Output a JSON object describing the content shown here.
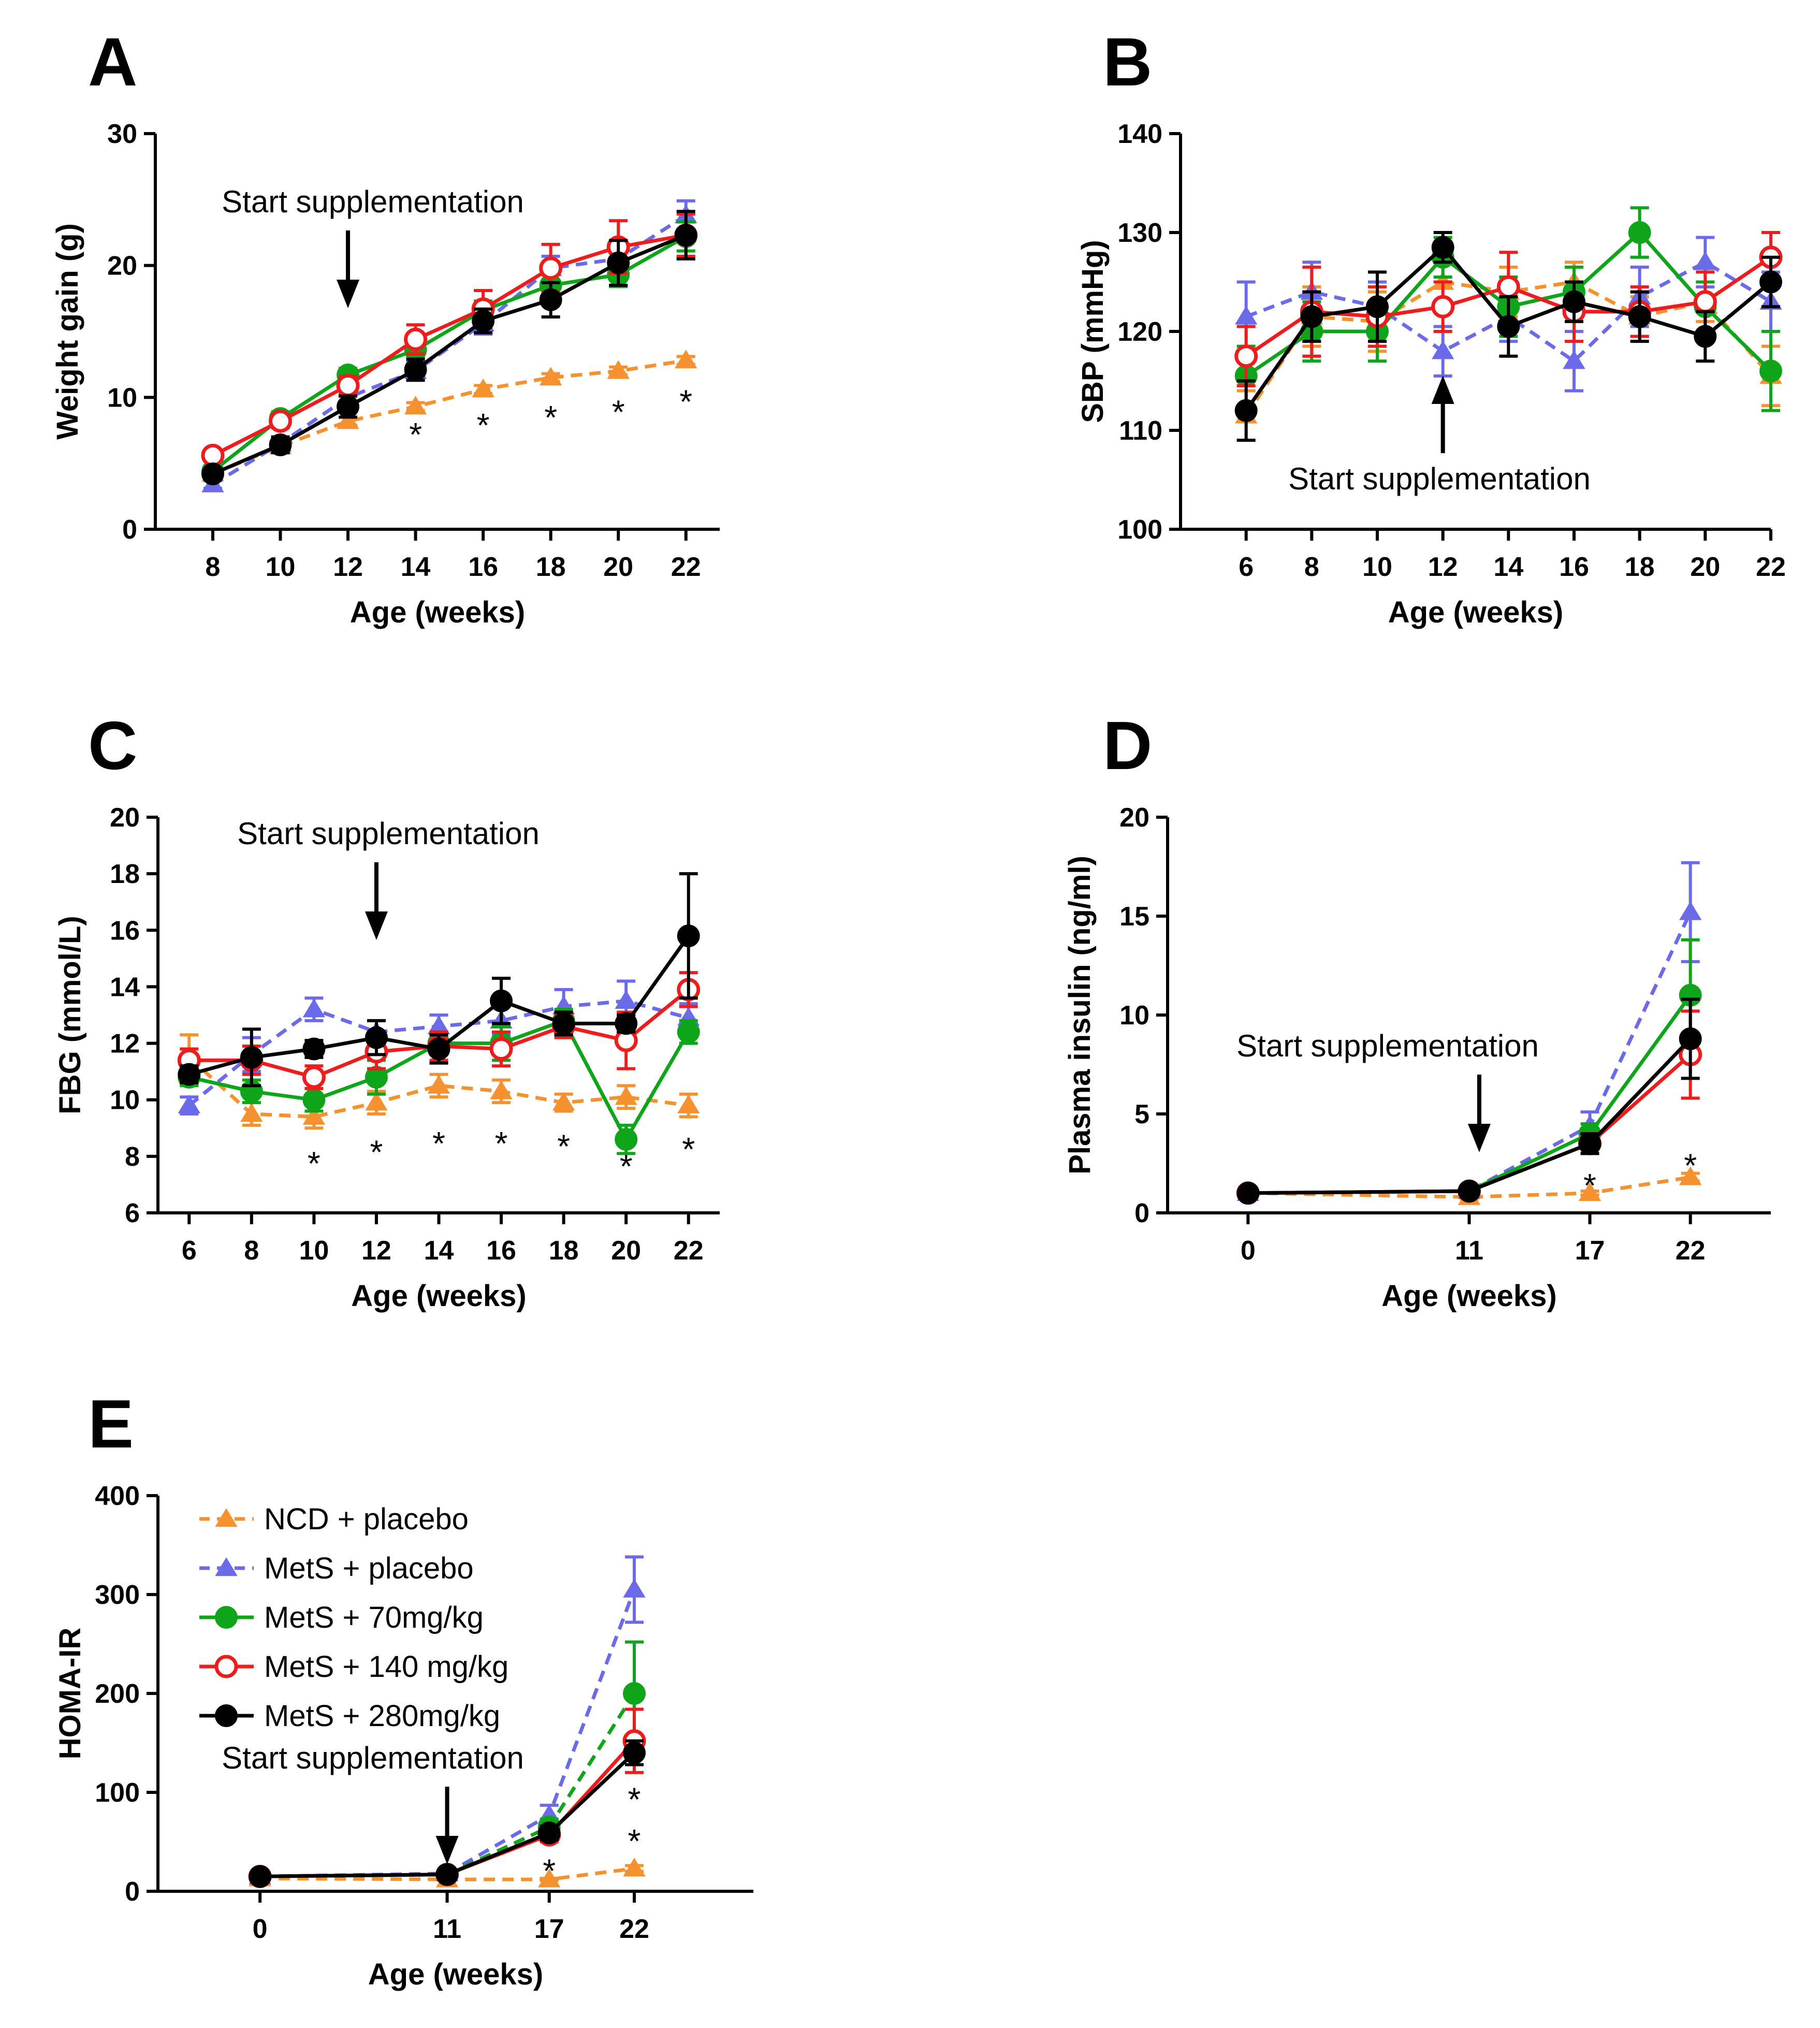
{
  "series_meta": [
    {
      "key": "ncd",
      "name": "NCD + placebo",
      "color": "#f5922f",
      "marker": "triangle-filled",
      "dash": true
    },
    {
      "key": "mets",
      "name": "MetS + placebo",
      "color": "#6b6bea",
      "marker": "triangle-filled",
      "dash": true
    },
    {
      "key": "m70",
      "name": "MetS + 70mg/kg",
      "color": "#0ea51a",
      "marker": "circle-filled",
      "dash": false
    },
    {
      "key": "m140",
      "name": "MetS + 140 mg/kg",
      "color": "#ee1c1c",
      "marker": "circle-open",
      "dash": false
    },
    {
      "key": "m280",
      "name": "MetS + 280mg/kg",
      "color": "#000000",
      "marker": "circle-filled",
      "dash": false
    }
  ],
  "chart_data": [
    {
      "id": "A",
      "letter": "A",
      "type": "line",
      "xlabel": "Age (weeks)",
      "ylabel": "Weight gain (g)",
      "x": [
        8,
        10,
        12,
        14,
        16,
        18,
        20,
        22
      ],
      "xlim": [
        6.3,
        23
      ],
      "ylim": [
        0,
        30
      ],
      "yticks": [
        0,
        10,
        20,
        30
      ],
      "annotation": "Start supplementation",
      "arrow_x": 12,
      "arrow_dir": "down",
      "significance": [
        {
          "x": 14,
          "y": 7.5,
          "text": "*"
        },
        {
          "x": 16,
          "y": 8.2,
          "text": "*"
        },
        {
          "x": 18,
          "y": 8.8,
          "text": "*"
        },
        {
          "x": 20,
          "y": 9.2,
          "text": "*"
        },
        {
          "x": 22,
          "y": 10.0,
          "text": "*"
        }
      ],
      "series": [
        {
          "key": "ncd",
          "values": [
            4.2,
            6.3,
            8.2,
            9.3,
            10.6,
            11.5,
            12.0,
            12.8
          ],
          "err": [
            0.3,
            0.3,
            0.3,
            0.3,
            0.3,
            0.3,
            0.3,
            0.3
          ]
        },
        {
          "key": "mets",
          "values": [
            3.4,
            6.5,
            10.0,
            12.0,
            15.6,
            19.8,
            20.5,
            23.8
          ],
          "err": [
            0.3,
            0.5,
            0.6,
            0.7,
            0.8,
            0.9,
            0.8,
            1.1
          ]
        },
        {
          "key": "m70",
          "values": [
            4.4,
            8.4,
            11.7,
            13.6,
            16.6,
            18.5,
            19.3,
            22.2
          ],
          "err": [
            0.3,
            0.5,
            0.5,
            0.6,
            0.7,
            0.8,
            0.9,
            1.1
          ]
        },
        {
          "key": "m140",
          "values": [
            5.6,
            8.2,
            10.9,
            14.4,
            16.7,
            19.8,
            21.4,
            22.3
          ],
          "err": [
            0.3,
            0.5,
            0.7,
            1.1,
            1.4,
            1.8,
            2.0,
            1.6
          ]
        },
        {
          "key": "m280",
          "values": [
            4.2,
            6.4,
            9.3,
            12.1,
            15.8,
            17.4,
            20.2,
            22.3
          ],
          "err": [
            0.3,
            0.6,
            0.8,
            0.8,
            0.9,
            1.3,
            1.7,
            1.8
          ]
        }
      ]
    },
    {
      "id": "B",
      "letter": "B",
      "type": "line",
      "xlabel": "Age (weeks)",
      "ylabel": "SBP (mmHg)",
      "x": [
        6,
        8,
        10,
        12,
        14,
        16,
        18,
        20,
        22
      ],
      "xlim": [
        4,
        22
      ],
      "ylim": [
        100,
        140
      ],
      "yticks": [
        100,
        110,
        120,
        130,
        140
      ],
      "annotation": "Start supplementation",
      "arrow_x": 12,
      "arrow_dir": "up",
      "significance": [],
      "series": [
        {
          "key": "ncd",
          "values": [
            111.5,
            121.5,
            121.0,
            125.0,
            124.0,
            125.0,
            121.5,
            123.0,
            115.5
          ],
          "err": [
            2.5,
            3.0,
            3.0,
            2.0,
            2.5,
            2.0,
            2.0,
            2.0,
            3.0
          ]
        },
        {
          "key": "mets",
          "values": [
            121.5,
            124.0,
            122.5,
            118.0,
            121.5,
            117.0,
            123.5,
            127.0,
            123.0
          ],
          "err": [
            3.5,
            3.0,
            2.5,
            2.5,
            2.5,
            3.0,
            3.0,
            2.5,
            3.0
          ]
        },
        {
          "key": "m70",
          "values": [
            115.5,
            120.0,
            120.0,
            127.5,
            122.5,
            124.0,
            130.0,
            122.5,
            116.0
          ],
          "err": [
            3.0,
            3.0,
            3.0,
            2.0,
            3.0,
            2.5,
            2.5,
            2.5,
            4.0
          ]
        },
        {
          "key": "m140",
          "values": [
            117.5,
            122.0,
            121.5,
            122.5,
            124.5,
            122.0,
            122.0,
            123.0,
            127.5
          ],
          "err": [
            3.0,
            4.5,
            3.0,
            2.5,
            3.5,
            3.0,
            2.5,
            3.0,
            2.5
          ]
        },
        {
          "key": "m280",
          "values": [
            112.0,
            121.5,
            122.5,
            128.5,
            120.5,
            123.0,
            121.5,
            119.5,
            125.0
          ],
          "err": [
            3.0,
            2.5,
            3.5,
            1.5,
            3.0,
            2.0,
            2.5,
            2.5,
            2.5
          ]
        }
      ]
    },
    {
      "id": "C",
      "letter": "C",
      "type": "line",
      "xlabel": "Age (weeks)",
      "ylabel": "FBG (mmol/L)",
      "x": [
        6,
        8,
        10,
        12,
        14,
        16,
        18,
        20,
        22
      ],
      "xlim": [
        5,
        23
      ],
      "ylim": [
        6,
        20
      ],
      "yticks": [
        6,
        8,
        10,
        12,
        14,
        16,
        18,
        20
      ],
      "annotation": "Start supplementation",
      "arrow_x": 12,
      "arrow_dir": "down",
      "significance": [
        {
          "x": 10,
          "y": 7.9,
          "text": "*"
        },
        {
          "x": 12,
          "y": 8.3,
          "text": "*"
        },
        {
          "x": 14,
          "y": 8.6,
          "text": "*"
        },
        {
          "x": 16,
          "y": 8.6,
          "text": "*"
        },
        {
          "x": 18,
          "y": 8.5,
          "text": "*"
        },
        {
          "x": 20,
          "y": 7.8,
          "text": "*"
        },
        {
          "x": 22,
          "y": 8.4,
          "text": "*"
        }
      ],
      "series": [
        {
          "key": "ncd",
          "values": [
            11.5,
            9.5,
            9.4,
            9.9,
            10.5,
            10.3,
            9.9,
            10.1,
            9.8
          ],
          "err": [
            0.8,
            0.4,
            0.4,
            0.4,
            0.4,
            0.4,
            0.3,
            0.4,
            0.4
          ]
        },
        {
          "key": "mets",
          "values": [
            9.8,
            11.6,
            13.2,
            12.4,
            12.6,
            12.8,
            13.3,
            13.5,
            12.9
          ],
          "err": [
            0.3,
            0.6,
            0.4,
            0.4,
            0.4,
            0.5,
            0.6,
            0.7,
            0.5
          ]
        },
        {
          "key": "m70",
          "values": [
            10.8,
            10.3,
            10.0,
            10.8,
            12.0,
            12.0,
            12.8,
            8.6,
            12.4
          ],
          "err": [
            0.3,
            0.4,
            0.4,
            0.6,
            0.4,
            0.6,
            0.4,
            0.5,
            0.4
          ]
        },
        {
          "key": "m140",
          "values": [
            11.4,
            11.4,
            10.8,
            11.7,
            11.9,
            11.8,
            12.6,
            12.1,
            13.9
          ],
          "err": [
            0.4,
            0.5,
            0.4,
            0.6,
            0.5,
            0.6,
            0.4,
            1.0,
            0.6
          ]
        },
        {
          "key": "m280",
          "values": [
            10.9,
            11.5,
            11.8,
            12.2,
            11.8,
            13.5,
            12.7,
            12.7,
            15.8
          ],
          "err": [
            0.3,
            1.0,
            0.3,
            0.6,
            0.5,
            0.8,
            0.4,
            0.3,
            2.2
          ]
        }
      ]
    },
    {
      "id": "D",
      "letter": "D",
      "type": "line",
      "xlabel": "Age (weeks)",
      "ylabel": "Plasma insulin (ng/ml)",
      "x": [
        0,
        11,
        17,
        22
      ],
      "xlim": [
        -4,
        26
      ],
      "ylim": [
        0,
        20
      ],
      "yticks": [
        0,
        5,
        10,
        15,
        20
      ],
      "annotation": "Start supplementation",
      "arrow_x": 11.5,
      "arrow_dir": "down",
      "significance": [
        {
          "x": 17,
          "y": 1.6,
          "text": "*"
        },
        {
          "x": 22,
          "y": 2.6,
          "text": "*"
        }
      ],
      "series": [
        {
          "key": "ncd",
          "values": [
            1.0,
            0.8,
            1.0,
            1.8
          ],
          "err": [
            0.1,
            0.1,
            0.1,
            0.2
          ],
          "dash": true
        },
        {
          "key": "mets",
          "values": [
            1.0,
            1.1,
            4.4,
            15.2
          ],
          "err": [
            0.1,
            0.1,
            0.7,
            2.5
          ],
          "dash": true
        },
        {
          "key": "m70",
          "values": [
            1.0,
            1.1,
            4.0,
            11.0
          ],
          "err": [
            0.1,
            0.1,
            0.5,
            2.8
          ],
          "dash": false
        },
        {
          "key": "m140",
          "values": [
            1.0,
            1.1,
            3.5,
            8.0
          ],
          "err": [
            0.1,
            0.1,
            0.5,
            2.2
          ],
          "dash": false
        },
        {
          "key": "m280",
          "values": [
            1.0,
            1.1,
            3.5,
            8.8
          ],
          "err": [
            0.1,
            0.1,
            0.5,
            2.0
          ],
          "dash": false
        }
      ]
    },
    {
      "id": "E",
      "letter": "E",
      "type": "line",
      "xlabel": "Age (weeks)",
      "ylabel": "HOMA-IR",
      "x": [
        0,
        11,
        17,
        22
      ],
      "xlim": [
        -6,
        29
      ],
      "ylim": [
        0,
        400
      ],
      "yticks": [
        0,
        100,
        200,
        300,
        400
      ],
      "annotation": "Start supplementation",
      "arrow_x": 11,
      "arrow_dir": "down",
      "significance": [
        {
          "x": 17,
          "y": 25,
          "text": "*"
        },
        {
          "x": 22,
          "y": 55,
          "text": "*"
        },
        {
          "x": 22,
          "y": 97,
          "text": "*"
        }
      ],
      "series": [
        {
          "key": "ncd",
          "values": [
            13,
            12,
            12,
            23
          ],
          "err": [
            1,
            1,
            1,
            3
          ],
          "dash": true
        },
        {
          "key": "mets",
          "values": [
            15,
            18,
            77,
            305
          ],
          "err": [
            1,
            1,
            10,
            33
          ],
          "dash": true
        },
        {
          "key": "m70",
          "values": [
            15,
            17,
            65,
            200
          ],
          "err": [
            1,
            1,
            8,
            52
          ],
          "dash": true
        },
        {
          "key": "m140",
          "values": [
            15,
            17,
            57,
            152
          ],
          "err": [
            1,
            1,
            7,
            32
          ],
          "dash": false
        },
        {
          "key": "m280",
          "values": [
            15,
            17,
            59,
            140
          ],
          "err": [
            1,
            1,
            7,
            12
          ],
          "dash": false
        }
      ]
    }
  ],
  "legend": {
    "panel": "E",
    "items": [
      "ncd",
      "mets",
      "m70",
      "m140",
      "m280"
    ]
  }
}
